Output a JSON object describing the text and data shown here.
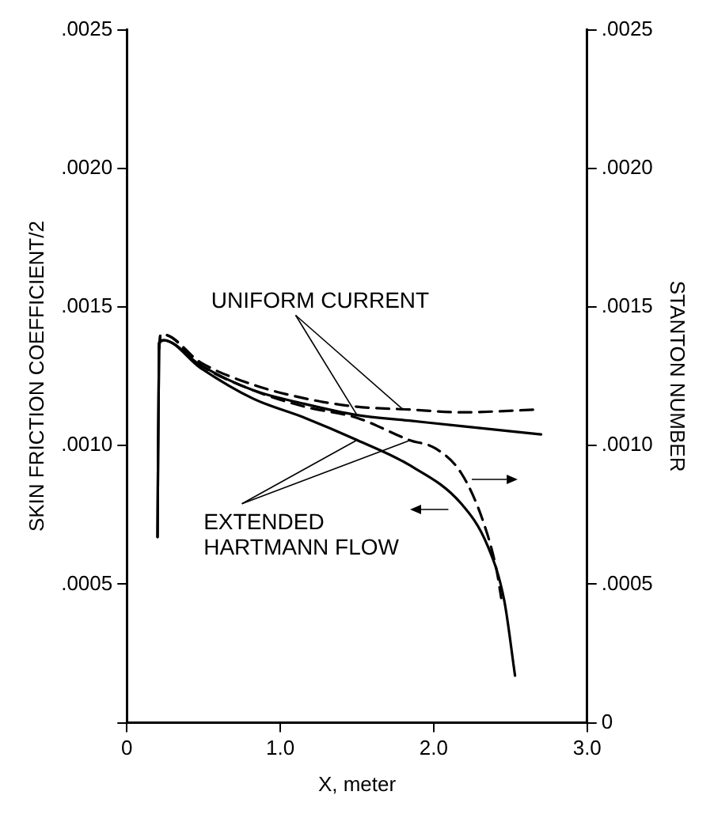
{
  "chart_data": {
    "type": "line",
    "xlabel": "X, meter",
    "ylabel": "SKIN FRICTION COEFFICIENT/2",
    "y2label": "STANTON NUMBER",
    "xlim": [
      0,
      3
    ],
    "xticks": [
      0,
      {
        "value": 1,
        "label": "1.0"
      },
      {
        "value": 2,
        "label": "2.0"
      },
      {
        "value": 3,
        "label": "3.0"
      }
    ],
    "ylim": [
      0,
      0.0025
    ],
    "yticks": [
      {
        "value": 0,
        "label": null
      },
      {
        "value": 0.0005,
        "label": ".0005"
      },
      {
        "value": 0.001,
        "label": ".0010"
      },
      {
        "value": 0.0015,
        "label": ".0015"
      },
      {
        "value": 0.002,
        "label": ".0020"
      },
      {
        "value": 0.0025,
        "label": ".0025"
      }
    ],
    "y2lim": [
      0,
      0.0025
    ],
    "y2ticks": [
      0,
      {
        "value": 0.0005,
        "label": ".0005"
      },
      {
        "value": 0.001,
        "label": ".0010"
      },
      {
        "value": 0.0015,
        "label": ".0015"
      },
      {
        "value": 0.002,
        "label": ".0020"
      },
      {
        "value": 0.0025,
        "label": ".0025"
      }
    ],
    "grid": false,
    "legend": false,
    "marker": "none",
    "series": [
      {
        "color": "#000000",
        "line_style": "solid",
        "x": [
          0.2,
          0.21,
          0.24,
          0.48,
          0.82,
          1.16,
          1.5,
          1.84,
          2.18,
          2.7
        ],
        "values": [
          0.00067,
          0.00137,
          0.00138,
          0.00129,
          0.0012,
          0.00115,
          0.00111,
          0.00109,
          0.00107,
          0.00104
        ]
      },
      {
        "color": "#000000",
        "line_style": "dashed",
        "axis": "y2",
        "x": [
          0.21,
          0.22,
          0.24,
          0.48,
          0.82,
          1.16,
          1.5,
          1.84,
          2.18,
          2.68
        ],
        "values": [
          0.00135,
          0.0014,
          0.0014,
          0.0013,
          0.00122,
          0.00117,
          0.00114,
          0.00113,
          0.00112,
          0.00113
        ]
      },
      {
        "color": "#000000",
        "line_style": "solid",
        "x": [
          0.2,
          0.21,
          0.24,
          0.48,
          0.82,
          1.16,
          1.5,
          1.84,
          2.18,
          2.35,
          2.46,
          2.53
        ],
        "values": [
          0.00067,
          0.00137,
          0.00138,
          0.00128,
          0.00117,
          0.0011,
          0.00102,
          0.00093,
          0.00079,
          0.00064,
          0.00044,
          0.00017
        ]
      },
      {
        "color": "#000000",
        "line_style": "dashed",
        "axis": "y2",
        "x": [
          0.21,
          0.22,
          0.24,
          0.48,
          0.82,
          1.16,
          1.5,
          1.84,
          2.01,
          2.18,
          2.32,
          2.41,
          2.44
        ],
        "values": [
          0.00135,
          0.0014,
          0.0014,
          0.00129,
          0.0012,
          0.00114,
          0.0011,
          0.00102,
          0.00099,
          0.0009,
          0.00073,
          0.00055,
          0.00045
        ]
      }
    ],
    "annotations": [
      {
        "text": "UNIFORM CURRENT",
        "x": 1.5,
        "y": 0.00111
      },
      {
        "text": "EXTENDED HARTMANN FLOW",
        "x": 1.5,
        "y": 0.00102
      }
    ]
  }
}
